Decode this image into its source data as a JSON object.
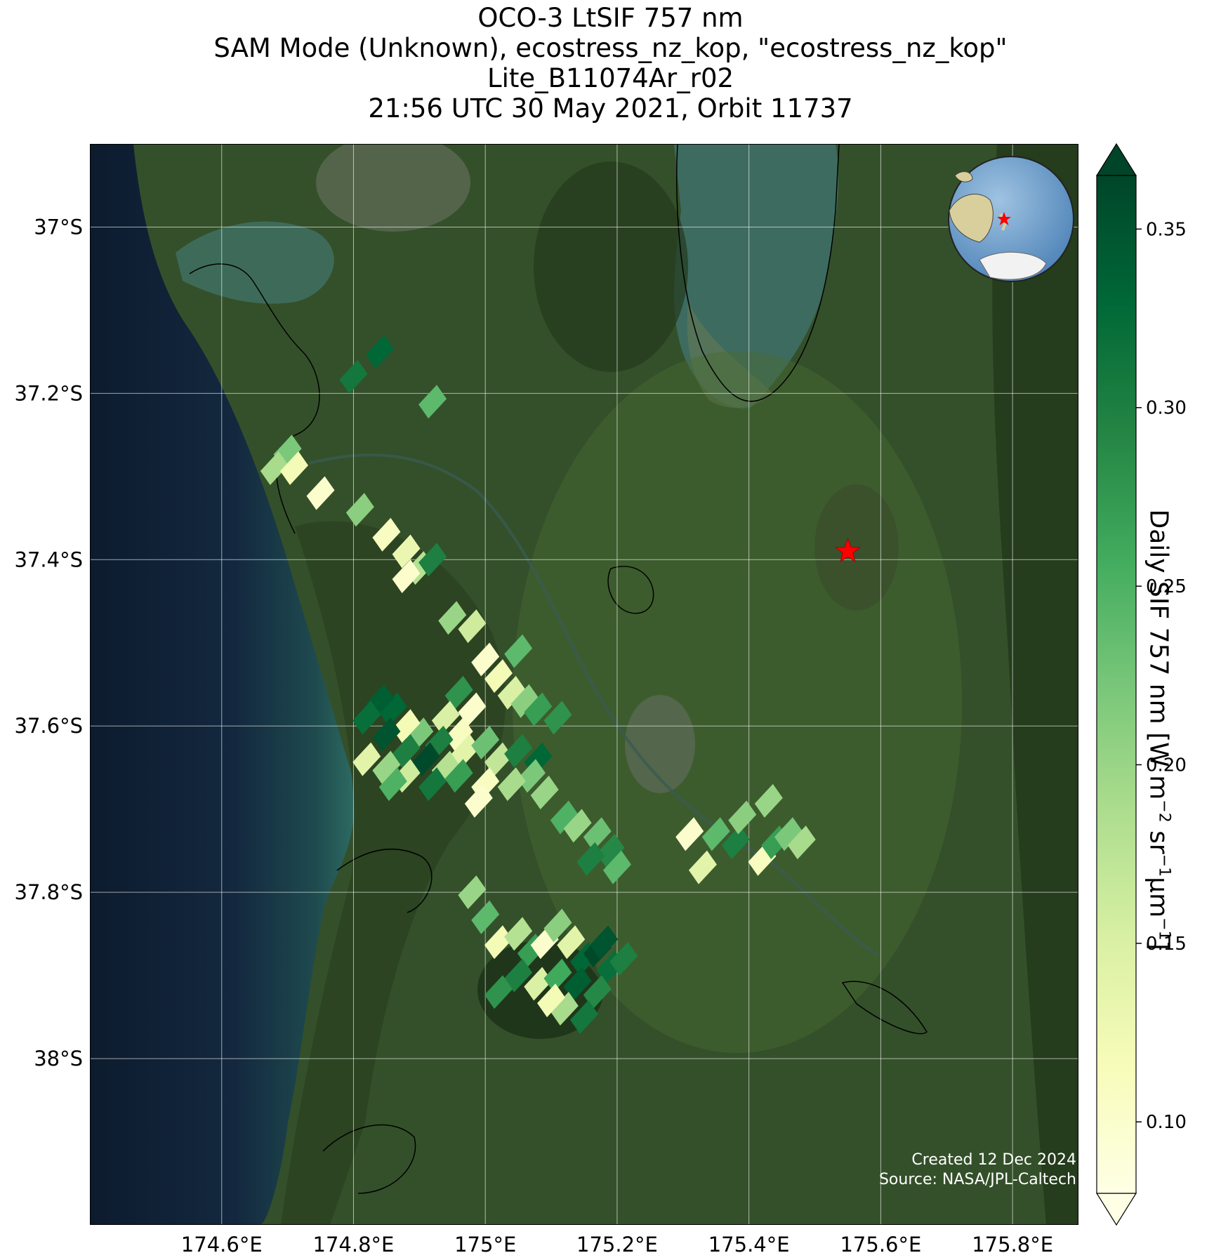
{
  "title": {
    "line1": "OCO-3 LtSIF 757 nm",
    "line2": "SAM Mode (Unknown), ecostress_nz_kop, \"ecostress_nz_kop\"",
    "line3": "Lite_B11074Ar_r02",
    "line4": "21:56 UTC 30 May 2021, Orbit 11737"
  },
  "map": {
    "lon_range": [
      174.4,
      175.9
    ],
    "lat_range": [
      -38.2,
      -36.9
    ],
    "lon_ticks": [
      174.6,
      174.8,
      175.0,
      175.2,
      175.4,
      175.6,
      175.8
    ],
    "lon_tick_labels": [
      "174.6°E",
      "174.8°E",
      "175°E",
      "175.2°E",
      "175.4°E",
      "175.6°E",
      "175.8°E"
    ],
    "lat_ticks": [
      -37.0,
      -37.2,
      -37.4,
      -37.6,
      -37.8,
      -38.0
    ],
    "lat_tick_labels": [
      "37°S",
      "37.2°S",
      "37.4°S",
      "37.6°S",
      "37.8°S",
      "38°S"
    ],
    "grid": true,
    "background": "satellite imagery",
    "target_marker": {
      "icon": "red-star-icon",
      "lon": 175.55,
      "lat": -37.39,
      "color": "#ff0000"
    },
    "inset_globe": {
      "placement": "top-right",
      "icon": "globe-icon"
    }
  },
  "colorbar": {
    "label_main": "Daily SIF 757 nm [W m",
    "label_exp1": "−2",
    "label_mid1": " sr",
    "label_exp2": "−1",
    "label_mid2": "μm",
    "label_exp3": "−1",
    "label_end": "]",
    "min": 0.08,
    "max": 0.365,
    "ticks": [
      0.1,
      0.15,
      0.2,
      0.25,
      0.3,
      0.35
    ],
    "tick_labels": [
      "0.10",
      "0.15",
      "0.20",
      "0.25",
      "0.30",
      "0.35"
    ],
    "colormap": "YlGn",
    "extend": "both"
  },
  "credit": {
    "created": "Created 12 Dec 2024",
    "source": "Source: NASA/JPL-Caltech"
  },
  "chart_data": {
    "type": "scatter",
    "description_units": "lon (deg E), lat (deg), sif (W m-2 sr-1 um-1)",
    "soundings": [
      {
        "lon": 174.84,
        "lat": -37.15,
        "sif": 0.33
      },
      {
        "lon": 174.8,
        "lat": -37.18,
        "sif": 0.31
      },
      {
        "lon": 174.92,
        "lat": -37.21,
        "sif": 0.24
      },
      {
        "lon": 174.7,
        "lat": -37.27,
        "sif": 0.22
      },
      {
        "lon": 174.68,
        "lat": -37.29,
        "sif": 0.19
      },
      {
        "lon": 174.71,
        "lat": -37.29,
        "sif": 0.12
      },
      {
        "lon": 174.75,
        "lat": -37.32,
        "sif": 0.1
      },
      {
        "lon": 174.81,
        "lat": -37.34,
        "sif": 0.21
      },
      {
        "lon": 174.85,
        "lat": -37.37,
        "sif": 0.11
      },
      {
        "lon": 174.88,
        "lat": -37.39,
        "sif": 0.13
      },
      {
        "lon": 174.9,
        "lat": -37.41,
        "sif": 0.18
      },
      {
        "lon": 174.92,
        "lat": -37.4,
        "sif": 0.3
      },
      {
        "lon": 174.88,
        "lat": -37.42,
        "sif": 0.1
      },
      {
        "lon": 174.95,
        "lat": -37.47,
        "sif": 0.2
      },
      {
        "lon": 174.98,
        "lat": -37.48,
        "sif": 0.16
      },
      {
        "lon": 175.05,
        "lat": -37.51,
        "sif": 0.24
      },
      {
        "lon": 175.0,
        "lat": -37.52,
        "sif": 0.1
      },
      {
        "lon": 175.02,
        "lat": -37.54,
        "sif": 0.12
      },
      {
        "lon": 175.04,
        "lat": -37.56,
        "sif": 0.15
      },
      {
        "lon": 175.06,
        "lat": -37.57,
        "sif": 0.21
      },
      {
        "lon": 175.08,
        "lat": -37.58,
        "sif": 0.27
      },
      {
        "lon": 175.11,
        "lat": -37.59,
        "sif": 0.28
      },
      {
        "lon": 174.96,
        "lat": -37.56,
        "sif": 0.28
      },
      {
        "lon": 174.98,
        "lat": -37.58,
        "sif": 0.1
      },
      {
        "lon": 174.94,
        "lat": -37.59,
        "sif": 0.15
      },
      {
        "lon": 174.96,
        "lat": -37.61,
        "sif": 0.11
      },
      {
        "lon": 174.93,
        "lat": -37.62,
        "sif": 0.3
      },
      {
        "lon": 174.9,
        "lat": -37.61,
        "sif": 0.22
      },
      {
        "lon": 174.88,
        "lat": -37.6,
        "sif": 0.12
      },
      {
        "lon": 174.86,
        "lat": -37.58,
        "sif": 0.33
      },
      {
        "lon": 174.84,
        "lat": -37.57,
        "sif": 0.34
      },
      {
        "lon": 174.82,
        "lat": -37.59,
        "sif": 0.32
      },
      {
        "lon": 174.85,
        "lat": -37.61,
        "sif": 0.35
      },
      {
        "lon": 174.88,
        "lat": -37.63,
        "sif": 0.3
      },
      {
        "lon": 174.91,
        "lat": -37.64,
        "sif": 0.36
      },
      {
        "lon": 174.94,
        "lat": -37.65,
        "sif": 0.18
      },
      {
        "lon": 174.97,
        "lat": -37.63,
        "sif": 0.14
      },
      {
        "lon": 175.0,
        "lat": -37.62,
        "sif": 0.23
      },
      {
        "lon": 175.02,
        "lat": -37.64,
        "sif": 0.17
      },
      {
        "lon": 175.05,
        "lat": -37.63,
        "sif": 0.3
      },
      {
        "lon": 175.08,
        "lat": -37.64,
        "sif": 0.33
      },
      {
        "lon": 175.07,
        "lat": -37.66,
        "sif": 0.22
      },
      {
        "lon": 175.04,
        "lat": -37.67,
        "sif": 0.19
      },
      {
        "lon": 175.0,
        "lat": -37.67,
        "sif": 0.11
      },
      {
        "lon": 174.96,
        "lat": -37.66,
        "sif": 0.27
      },
      {
        "lon": 174.92,
        "lat": -37.67,
        "sif": 0.31
      },
      {
        "lon": 174.88,
        "lat": -37.66,
        "sif": 0.16
      },
      {
        "lon": 174.85,
        "lat": -37.65,
        "sif": 0.2
      },
      {
        "lon": 174.82,
        "lat": -37.64,
        "sif": 0.14
      },
      {
        "lon": 174.86,
        "lat": -37.67,
        "sif": 0.25
      },
      {
        "lon": 174.99,
        "lat": -37.69,
        "sif": 0.1
      },
      {
        "lon": 175.09,
        "lat": -37.68,
        "sif": 0.2
      },
      {
        "lon": 175.12,
        "lat": -37.71,
        "sif": 0.25
      },
      {
        "lon": 175.14,
        "lat": -37.72,
        "sif": 0.2
      },
      {
        "lon": 175.17,
        "lat": -37.73,
        "sif": 0.23
      },
      {
        "lon": 175.19,
        "lat": -37.75,
        "sif": 0.29
      },
      {
        "lon": 175.16,
        "lat": -37.76,
        "sif": 0.3
      },
      {
        "lon": 175.2,
        "lat": -37.77,
        "sif": 0.24
      },
      {
        "lon": 175.31,
        "lat": -37.73,
        "sif": 0.1
      },
      {
        "lon": 175.35,
        "lat": -37.73,
        "sif": 0.24
      },
      {
        "lon": 175.38,
        "lat": -37.74,
        "sif": 0.3
      },
      {
        "lon": 175.33,
        "lat": -37.77,
        "sif": 0.14
      },
      {
        "lon": 175.39,
        "lat": -37.71,
        "sif": 0.21
      },
      {
        "lon": 175.42,
        "lat": -37.76,
        "sif": 0.11
      },
      {
        "lon": 175.44,
        "lat": -37.74,
        "sif": 0.27
      },
      {
        "lon": 175.46,
        "lat": -37.73,
        "sif": 0.22
      },
      {
        "lon": 175.48,
        "lat": -37.74,
        "sif": 0.19
      },
      {
        "lon": 175.43,
        "lat": -37.69,
        "sif": 0.2
      },
      {
        "lon": 174.98,
        "lat": -37.8,
        "sif": 0.2
      },
      {
        "lon": 175.0,
        "lat": -37.83,
        "sif": 0.24
      },
      {
        "lon": 175.02,
        "lat": -37.86,
        "sif": 0.12
      },
      {
        "lon": 175.05,
        "lat": -37.85,
        "sif": 0.18
      },
      {
        "lon": 175.07,
        "lat": -37.87,
        "sif": 0.27
      },
      {
        "lon": 175.09,
        "lat": -37.86,
        "sif": 0.1
      },
      {
        "lon": 175.11,
        "lat": -37.84,
        "sif": 0.21
      },
      {
        "lon": 175.13,
        "lat": -37.86,
        "sif": 0.14
      },
      {
        "lon": 175.15,
        "lat": -37.88,
        "sif": 0.33
      },
      {
        "lon": 175.17,
        "lat": -37.87,
        "sif": 0.36
      },
      {
        "lon": 175.19,
        "lat": -37.89,
        "sif": 0.32
      },
      {
        "lon": 175.21,
        "lat": -37.88,
        "sif": 0.3
      },
      {
        "lon": 175.05,
        "lat": -37.9,
        "sif": 0.3
      },
      {
        "lon": 175.08,
        "lat": -37.91,
        "sif": 0.15
      },
      {
        "lon": 175.11,
        "lat": -37.9,
        "sif": 0.26
      },
      {
        "lon": 175.14,
        "lat": -37.91,
        "sif": 0.34
      },
      {
        "lon": 175.17,
        "lat": -37.92,
        "sif": 0.29
      },
      {
        "lon": 175.12,
        "lat": -37.94,
        "sif": 0.19
      },
      {
        "lon": 175.15,
        "lat": -37.95,
        "sif": 0.31
      },
      {
        "lon": 175.1,
        "lat": -37.93,
        "sif": 0.12
      },
      {
        "lon": 175.02,
        "lat": -37.92,
        "sif": 0.28
      },
      {
        "lon": 175.18,
        "lat": -37.86,
        "sif": 0.35
      }
    ]
  }
}
